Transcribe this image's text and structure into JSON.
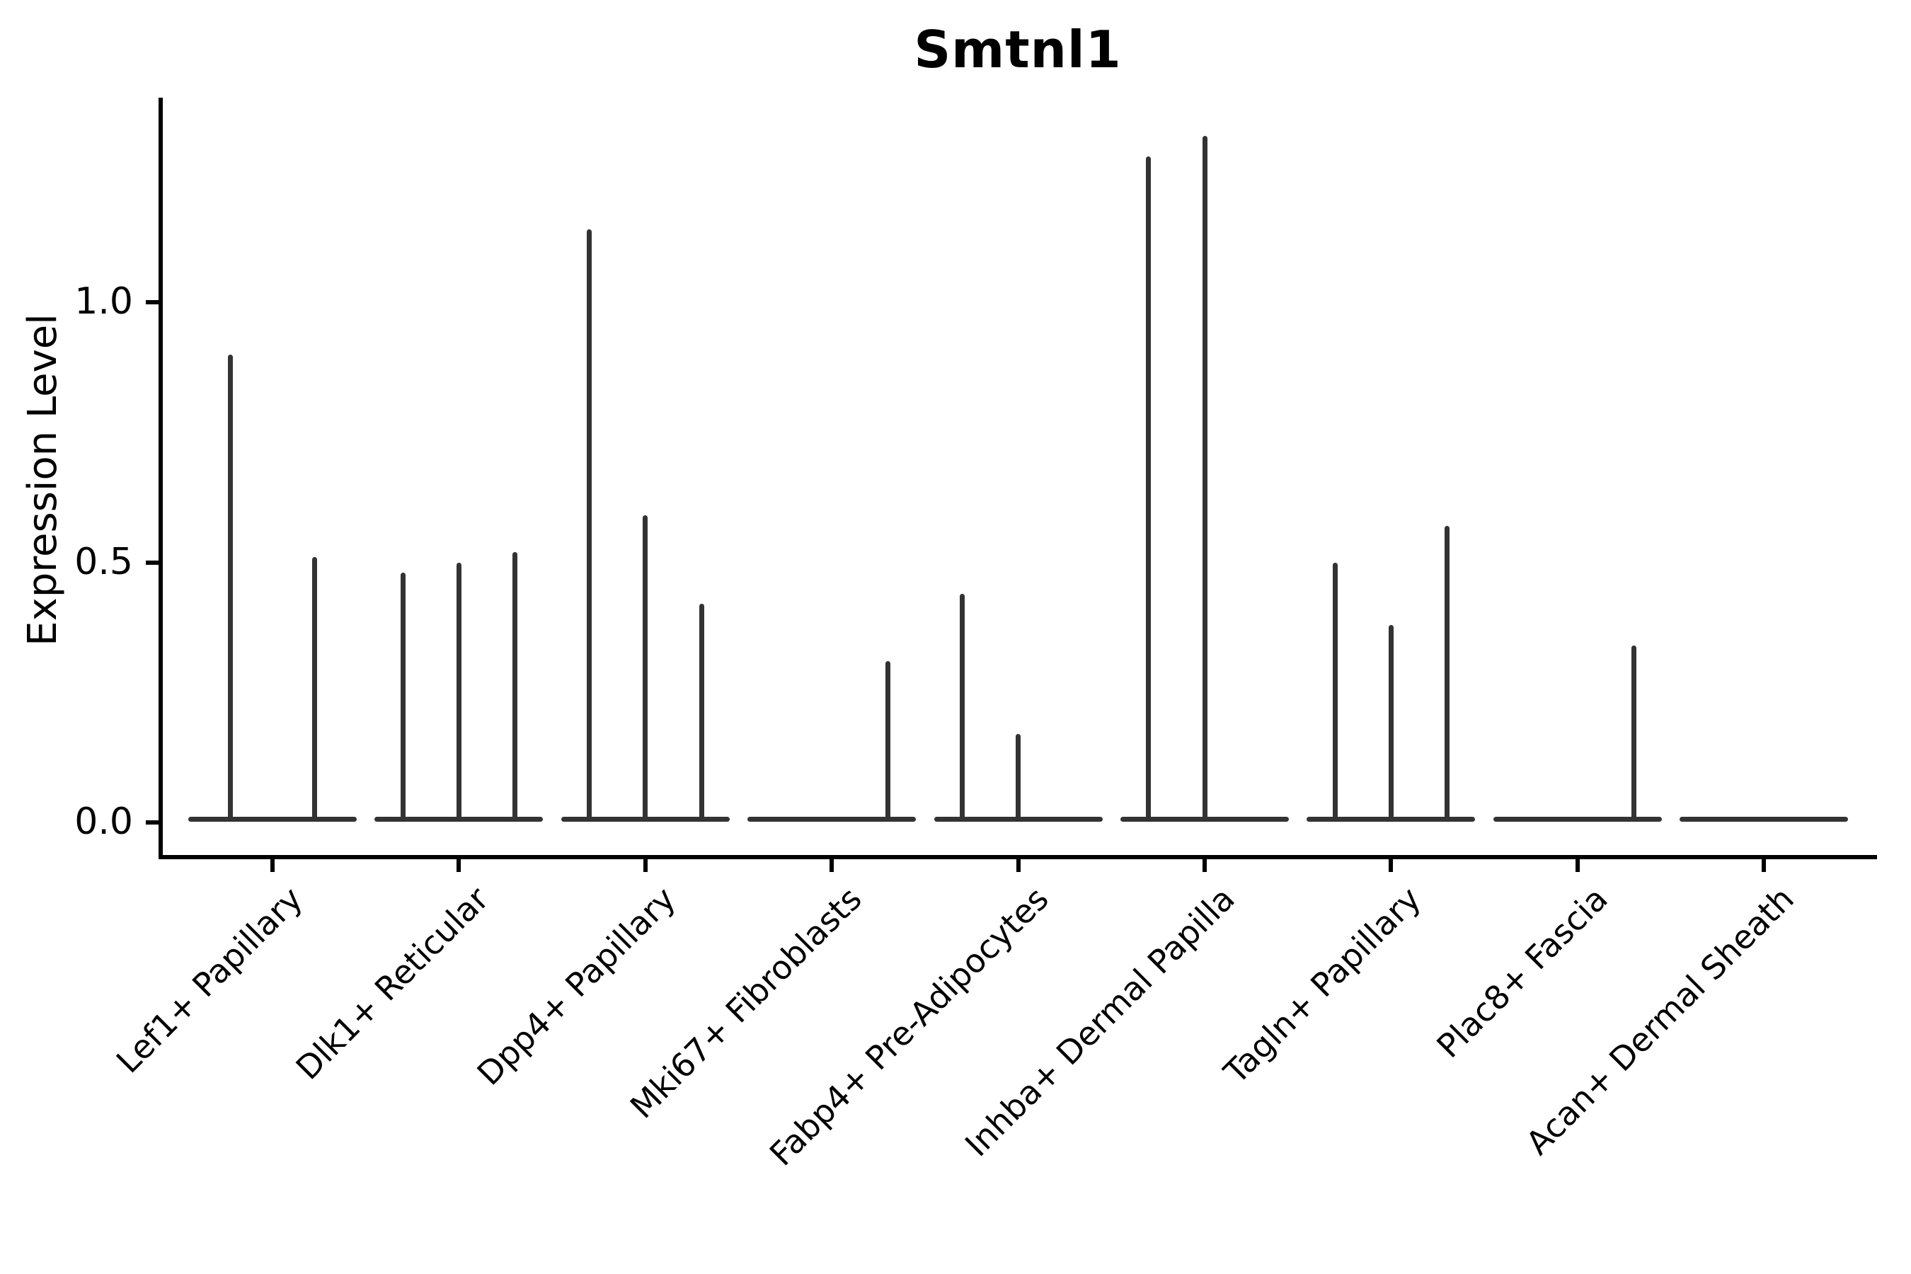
{
  "title": "Smtnl1",
  "colors": {
    "violin": "#333333",
    "axis": "#000000",
    "background": "#ffffff"
  },
  "chart_data": {
    "type": "violin",
    "title": "Smtnl1",
    "ylabel": "Expression Level",
    "xlabel": "",
    "ylim": [
      0,
      1.4
    ],
    "grid": false,
    "legend": "none",
    "yticks": [
      {
        "label": "0.0",
        "value": 0.0
      },
      {
        "label": "0.5",
        "value": 0.5
      },
      {
        "label": "1.0",
        "value": 1.0
      }
    ],
    "description": "Violin plot of Smtnl1 expression level per fibroblast cluster; each cluster shows dodged needle-thin violins (flat base at 0 with a thin density spike up to the max expressed value; 0 = fully flat violin).",
    "categories": [
      {
        "label": "Lef1+ Papillary",
        "violin_maxima": [
          0.9,
          0.51
        ]
      },
      {
        "label": "Dlk1+ Reticular",
        "violin_maxima": [
          0.48,
          0.5,
          0.52
        ]
      },
      {
        "label": "Dpp4+ Papillary",
        "violin_maxima": [
          1.14,
          0.59,
          0.42
        ]
      },
      {
        "label": "Mki67+ Fibroblasts",
        "violin_maxima": [
          0,
          0,
          0.31
        ]
      },
      {
        "label": "Fabp4+ Pre-Adipocytes",
        "violin_maxima": [
          0.44,
          0.17,
          0
        ]
      },
      {
        "label": "Inhba+ Dermal Papilla",
        "violin_maxima": [
          1.28,
          1.32,
          0
        ]
      },
      {
        "label": "Tagln+ Papillary",
        "violin_maxima": [
          0.5,
          0.38,
          0.57
        ]
      },
      {
        "label": "Plac8+ Fascia",
        "violin_maxima": [
          0,
          0,
          0.34
        ]
      },
      {
        "label": "Acan+ Dermal Sheath",
        "violin_maxima": [
          0,
          0,
          0
        ]
      }
    ]
  }
}
